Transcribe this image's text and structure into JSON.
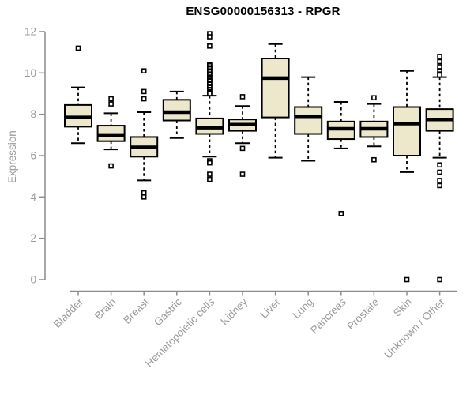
{
  "title": "ENSG00000156313 - RPGR",
  "style": {
    "background": "#FFFFFF",
    "box_fill": "#EDE8CC",
    "box_stroke": "#000000",
    "median_color": "#000000",
    "whisker_color": "#000000",
    "outlier_fill": "#FFFFFF",
    "outlier_stroke": "#000000",
    "axis_line_color": "#8C8C8C",
    "axis_text_color": "#9A9A9A",
    "title_color": "#000000"
  },
  "chart_data": {
    "type": "boxplot",
    "title": "ENSG00000156313 - RPGR",
    "xlabel": "",
    "ylabel": "Expression",
    "ylim": [
      0,
      12
    ],
    "yticks": [
      0,
      2,
      4,
      6,
      8,
      10,
      12
    ],
    "grid": false,
    "legend": "none",
    "categories": [
      "Bladder",
      "Brain",
      "Breast",
      "Gastric",
      "Hematopoietic cells",
      "Kidney",
      "Liver",
      "Lung",
      "Pancreas",
      "Prostate",
      "Skin",
      "Unknown / Other"
    ],
    "series": [
      {
        "name": "Bladder",
        "low": 6.6,
        "q1": 7.4,
        "median": 7.85,
        "q3": 8.45,
        "high": 9.3,
        "outliers": [
          11.2
        ]
      },
      {
        "name": "Brain",
        "low": 6.3,
        "q1": 6.7,
        "median": 7.0,
        "q3": 7.45,
        "high": 8.05,
        "outliers": [
          8.75,
          8.5,
          5.5
        ]
      },
      {
        "name": "Breast",
        "low": 4.8,
        "q1": 5.95,
        "median": 6.4,
        "q3": 6.9,
        "high": 8.1,
        "outliers": [
          10.1,
          9.1,
          8.75,
          4.2,
          4.0
        ]
      },
      {
        "name": "Gastric",
        "low": 6.85,
        "q1": 7.7,
        "median": 8.1,
        "q3": 8.7,
        "high": 9.1,
        "outliers": []
      },
      {
        "name": "Hematopoietic cells",
        "low": 5.95,
        "q1": 7.05,
        "median": 7.35,
        "q3": 7.8,
        "high": 8.9,
        "outliers": [
          11.9,
          11.75,
          11.3,
          10.4,
          10.35,
          10.25,
          10.2,
          10.1,
          10.05,
          9.95,
          9.9,
          9.8,
          9.75,
          9.65,
          9.6,
          9.5,
          9.45,
          9.35,
          9.3,
          9.2,
          9.1,
          9.05,
          9.0,
          5.75,
          5.65,
          5.1,
          4.85
        ]
      },
      {
        "name": "Kidney",
        "low": 6.6,
        "q1": 7.2,
        "median": 7.5,
        "q3": 7.75,
        "high": 8.4,
        "outliers": [
          8.85,
          6.35,
          5.1
        ]
      },
      {
        "name": "Liver",
        "low": 5.9,
        "q1": 7.85,
        "median": 9.75,
        "q3": 10.7,
        "high": 11.4,
        "outliers": []
      },
      {
        "name": "Lung",
        "low": 5.75,
        "q1": 7.05,
        "median": 7.9,
        "q3": 8.35,
        "high": 9.8,
        "outliers": []
      },
      {
        "name": "Pancreas",
        "low": 6.35,
        "q1": 6.8,
        "median": 7.3,
        "q3": 7.65,
        "high": 8.6,
        "outliers": [
          3.2
        ]
      },
      {
        "name": "Prostate",
        "low": 6.45,
        "q1": 6.9,
        "median": 7.3,
        "q3": 7.65,
        "high": 8.5,
        "outliers": [
          8.8,
          5.8
        ]
      },
      {
        "name": "Skin",
        "low": 5.2,
        "q1": 6.0,
        "median": 7.55,
        "q3": 8.35,
        "high": 10.1,
        "outliers": [
          0
        ]
      },
      {
        "name": "Unknown / Other",
        "low": 5.9,
        "q1": 7.2,
        "median": 7.75,
        "q3": 8.25,
        "high": 9.8,
        "outliers": [
          10.8,
          10.55,
          10.3,
          10.1,
          9.95,
          9.9,
          5.55,
          5.2,
          4.8,
          4.55,
          0
        ]
      }
    ]
  }
}
